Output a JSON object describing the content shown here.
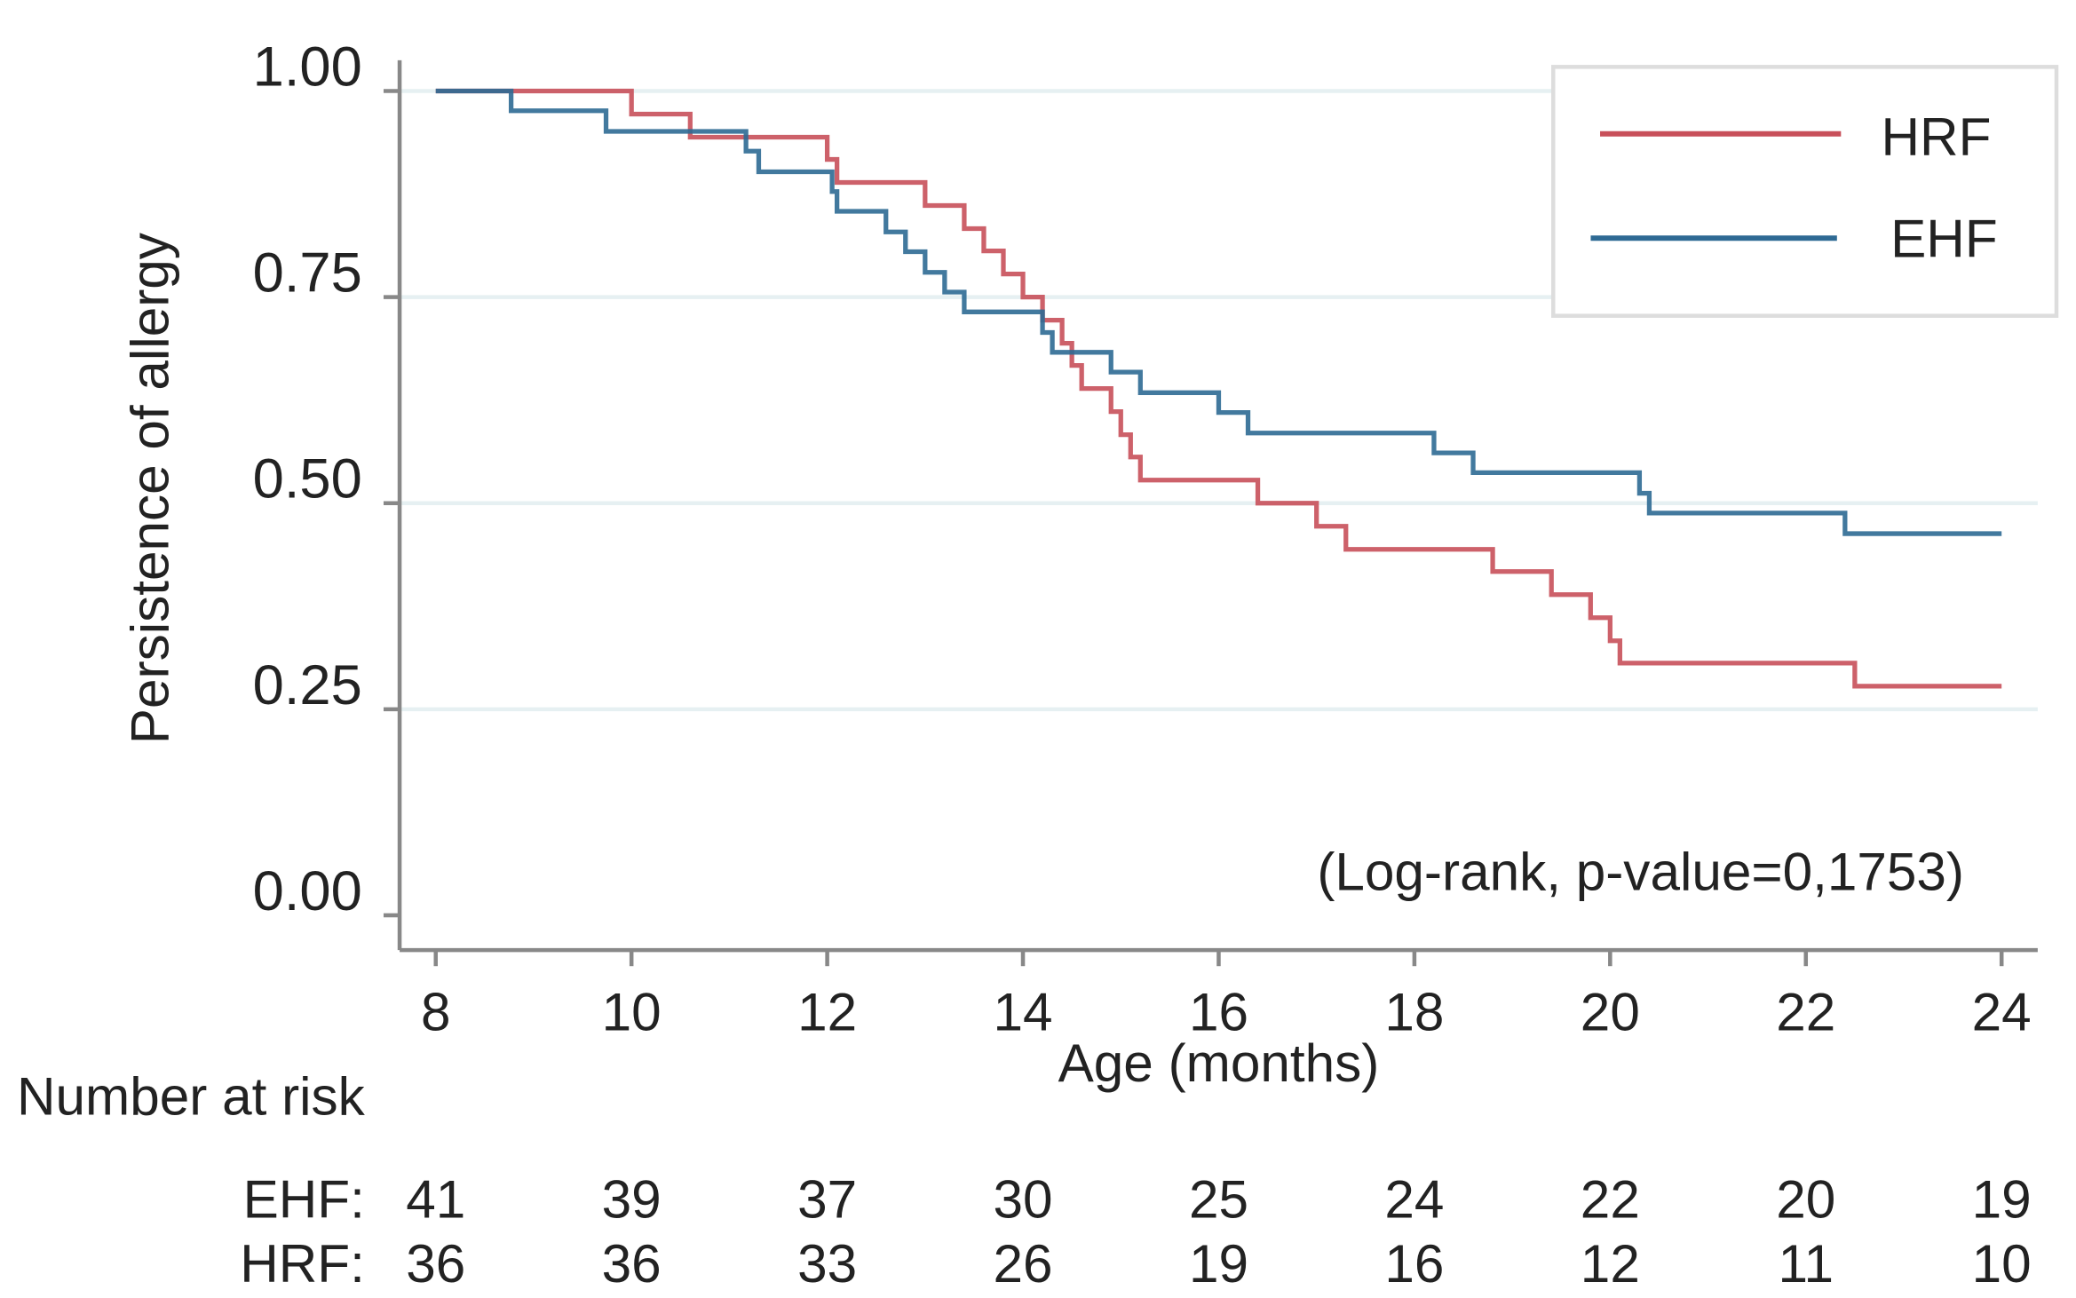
{
  "chart_data": {
    "type": "line",
    "step": true,
    "title": "",
    "xlabel": "Age (months)",
    "ylabel": "Persistence of allergy",
    "xlim": [
      8,
      24
    ],
    "ylim": [
      0,
      1
    ],
    "x_ticks": [
      "8",
      "10",
      "12",
      "14",
      "16",
      "18",
      "20",
      "22",
      "24"
    ],
    "y_ticks": [
      "0.00",
      "0.25",
      "0.50",
      "0.75",
      "1.00"
    ],
    "grid": "horizontal",
    "legend_position": "top-right",
    "annotation": "(Log-rank, p-value=0,1753)",
    "series": [
      {
        "name": "HRF",
        "color": "#c8505a",
        "x": [
          8,
          10.0,
          10.6,
          12.0,
          12.1,
          13.0,
          13.4,
          13.6,
          13.8,
          14.0,
          14.2,
          14.4,
          14.5,
          14.6,
          14.9,
          15.0,
          15.1,
          15.2,
          16.4,
          17.0,
          17.3,
          18.8,
          19.4,
          19.8,
          20.0,
          20.1,
          22.5,
          24
        ],
        "y": [
          1.0,
          0.972,
          0.944,
          0.917,
          0.889,
          0.861,
          0.833,
          0.806,
          0.778,
          0.75,
          0.722,
          0.694,
          0.667,
          0.639,
          0.611,
          0.583,
          0.556,
          0.528,
          0.5,
          0.472,
          0.444,
          0.417,
          0.389,
          0.361,
          0.333,
          0.306,
          0.278,
          0.278
        ]
      },
      {
        "name": "EHF",
        "color": "#2e6a94",
        "x": [
          8,
          8.77,
          9.74,
          11.17,
          11.3,
          12.05,
          12.1,
          12.6,
          12.8,
          13.0,
          13.2,
          13.4,
          14.2,
          14.3,
          14.9,
          15.2,
          16.0,
          16.3,
          18.2,
          18.6,
          20.3,
          20.4,
          22.4,
          24
        ],
        "y": [
          1.0,
          0.976,
          0.951,
          0.927,
          0.902,
          0.878,
          0.854,
          0.829,
          0.805,
          0.78,
          0.756,
          0.732,
          0.707,
          0.683,
          0.659,
          0.634,
          0.61,
          0.585,
          0.561,
          0.537,
          0.512,
          0.488,
          0.463,
          0.463
        ]
      }
    ],
    "risk_table": {
      "title": "Number at risk",
      "rows": [
        {
          "label": "EHF:",
          "values": [
            "41",
            "39",
            "37",
            "30",
            "25",
            "24",
            "22",
            "20",
            "19"
          ]
        },
        {
          "label": "HRF:",
          "values": [
            "36",
            "36",
            "33",
            "26",
            "19",
            "16",
            "12",
            "11",
            "10"
          ]
        }
      ]
    }
  }
}
